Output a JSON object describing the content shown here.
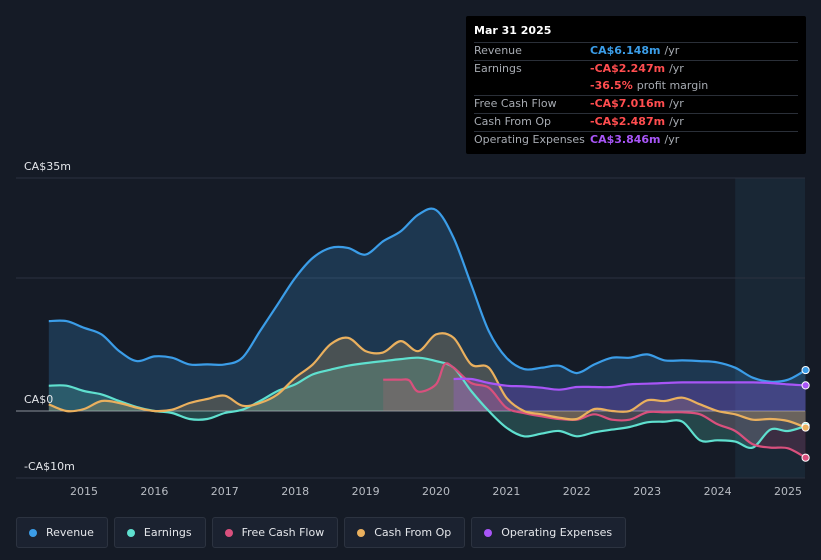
{
  "tooltip": {
    "date": "Mar 31 2025",
    "rows": [
      {
        "label": "Revenue",
        "value": "CA$6.148m",
        "unit": "/yr",
        "color": "#3b9de8"
      },
      {
        "label": "Earnings",
        "value": "-CA$2.247m",
        "unit": "/yr",
        "color": "#ff4d4f"
      },
      {
        "label": "",
        "value": "-36.5%",
        "unit": "profit margin",
        "color": "#ff4d4f"
      },
      {
        "label": "Free Cash Flow",
        "value": "-CA$7.016m",
        "unit": "/yr",
        "color": "#ff4d4f"
      },
      {
        "label": "Cash From Op",
        "value": "-CA$2.487m",
        "unit": "/yr",
        "color": "#ff4d4f"
      },
      {
        "label": "Operating Expenses",
        "value": "CA$3.846m",
        "unit": "/yr",
        "color": "#a855f7"
      }
    ]
  },
  "legend": [
    {
      "label": "Revenue",
      "color": "#3b9de8"
    },
    {
      "label": "Earnings",
      "color": "#5fe0cf"
    },
    {
      "label": "Free Cash Flow",
      "color": "#d9507d"
    },
    {
      "label": "Cash From Op",
      "color": "#eab05e"
    },
    {
      "label": "Operating Expenses",
      "color": "#a855f7"
    }
  ],
  "chart_data": {
    "type": "area",
    "ylabels": {
      "top": "CA$35m",
      "zero": "CA$0",
      "bottom": "-CA$10m"
    },
    "ylim": [
      -10,
      35
    ],
    "xlim": [
      2014.45,
      2025.3
    ],
    "x_ticks": [
      "2015",
      "2016",
      "2017",
      "2018",
      "2019",
      "2020",
      "2021",
      "2022",
      "2023",
      "2024",
      "2025"
    ],
    "forecast_start": 2024.25,
    "series": [
      {
        "name": "Revenue",
        "color": "#3b9de8",
        "x": [
          2014.5,
          2014.75,
          2015.0,
          2015.25,
          2015.5,
          2015.75,
          2016.0,
          2016.25,
          2016.5,
          2016.75,
          2017.0,
          2017.25,
          2017.5,
          2017.75,
          2018.0,
          2018.25,
          2018.5,
          2018.75,
          2019.0,
          2019.25,
          2019.5,
          2019.75,
          2020.0,
          2020.25,
          2020.5,
          2020.75,
          2021.0,
          2021.25,
          2021.5,
          2021.75,
          2022.0,
          2022.25,
          2022.5,
          2022.75,
          2023.0,
          2023.25,
          2023.5,
          2023.75,
          2024.0,
          2024.25,
          2024.5,
          2024.75,
          2025.0,
          2025.25
        ],
        "y": [
          13.5,
          13.5,
          12.5,
          11.5,
          9.0,
          7.5,
          8.2,
          8.0,
          7.0,
          7.0,
          7.0,
          8.0,
          12.0,
          16.0,
          20.0,
          23.0,
          24.5,
          24.5,
          23.5,
          25.5,
          27.0,
          29.5,
          30.2,
          26.0,
          19.0,
          12.0,
          8.0,
          6.3,
          6.5,
          6.8,
          5.7,
          7.0,
          8.0,
          8.0,
          8.5,
          7.6,
          7.6,
          7.5,
          7.3,
          6.5,
          5.0,
          4.4,
          4.7,
          6.148
        ]
      },
      {
        "name": "Earnings",
        "color": "#5fe0cf",
        "x": [
          2014.5,
          2014.75,
          2015.0,
          2015.25,
          2015.5,
          2015.75,
          2016.0,
          2016.25,
          2016.5,
          2016.75,
          2017.0,
          2017.25,
          2017.5,
          2017.75,
          2018.0,
          2018.25,
          2018.5,
          2018.75,
          2019.0,
          2019.25,
          2019.5,
          2019.75,
          2020.0,
          2020.25,
          2020.5,
          2020.75,
          2021.0,
          2021.25,
          2021.5,
          2021.75,
          2022.0,
          2022.25,
          2022.5,
          2022.75,
          2023.0,
          2023.25,
          2023.5,
          2023.75,
          2024.0,
          2024.25,
          2024.5,
          2024.75,
          2025.0,
          2025.25
        ],
        "y": [
          3.8,
          3.8,
          3.0,
          2.5,
          1.5,
          0.6,
          0.0,
          -0.3,
          -1.2,
          -1.2,
          -0.3,
          0.2,
          1.5,
          3.0,
          4.0,
          5.5,
          6.2,
          6.8,
          7.2,
          7.5,
          7.8,
          8.0,
          7.5,
          6.5,
          3.0,
          0.0,
          -2.5,
          -3.8,
          -3.4,
          -3.0,
          -3.8,
          -3.2,
          -2.8,
          -2.4,
          -1.7,
          -1.6,
          -1.6,
          -4.4,
          -4.4,
          -4.6,
          -5.5,
          -2.8,
          -3.0,
          -2.247
        ]
      },
      {
        "name": "Free Cash Flow",
        "color": "#d9507d",
        "x": [
          2019.25,
          2019.5,
          2019.62,
          2019.75,
          2020.0,
          2020.12,
          2020.25,
          2020.5,
          2020.75,
          2021.0,
          2021.25,
          2021.5,
          2021.75,
          2022.0,
          2022.25,
          2022.5,
          2022.75,
          2023.0,
          2023.25,
          2023.5,
          2023.75,
          2024.0,
          2024.25,
          2024.5,
          2024.75,
          2025.0,
          2025.25
        ],
        "y": [
          4.7,
          4.7,
          4.6,
          2.9,
          4.0,
          7.0,
          6.5,
          4.2,
          3.5,
          0.5,
          -0.3,
          -0.8,
          -1.2,
          -1.3,
          -0.5,
          -1.3,
          -1.3,
          -0.2,
          -0.2,
          -0.2,
          -0.5,
          -2.0,
          -3.0,
          -5.0,
          -5.5,
          -5.6,
          -7.016
        ]
      },
      {
        "name": "Cash From Op",
        "color": "#eab05e",
        "x": [
          2014.5,
          2014.75,
          2015.0,
          2015.25,
          2015.5,
          2015.75,
          2016.0,
          2016.25,
          2016.5,
          2016.75,
          2017.0,
          2017.25,
          2017.5,
          2017.75,
          2018.0,
          2018.25,
          2018.5,
          2018.75,
          2019.0,
          2019.25,
          2019.5,
          2019.75,
          2020.0,
          2020.25,
          2020.5,
          2020.75,
          2021.0,
          2021.25,
          2021.5,
          2021.75,
          2022.0,
          2022.25,
          2022.5,
          2022.75,
          2023.0,
          2023.25,
          2023.5,
          2023.75,
          2024.0,
          2024.25,
          2024.5,
          2024.75,
          2025.0,
          2025.25
        ],
        "y": [
          1.0,
          0.0,
          0.3,
          1.5,
          1.2,
          0.5,
          0.0,
          0.2,
          1.2,
          1.8,
          2.3,
          0.8,
          1.2,
          2.5,
          5.0,
          7.0,
          10.0,
          11.0,
          9.0,
          8.8,
          10.5,
          9.0,
          11.5,
          11.0,
          7.0,
          6.5,
          2.0,
          0.0,
          -0.5,
          -1.0,
          -1.2,
          0.3,
          0.0,
          0.0,
          1.6,
          1.5,
          2.0,
          1.0,
          0.0,
          -0.5,
          -1.3,
          -1.2,
          -1.5,
          -2.487
        ]
      },
      {
        "name": "Operating Expenses",
        "color": "#a855f7",
        "x": [
          2020.25,
          2020.5,
          2020.75,
          2021.0,
          2021.25,
          2021.5,
          2021.75,
          2022.0,
          2022.25,
          2022.5,
          2022.75,
          2023.0,
          2023.25,
          2023.5,
          2023.75,
          2024.0,
          2024.25,
          2024.5,
          2024.75,
          2025.0,
          2025.25
        ],
        "y": [
          4.8,
          4.8,
          4.2,
          3.8,
          3.7,
          3.5,
          3.2,
          3.6,
          3.6,
          3.6,
          4.0,
          4.1,
          4.2,
          4.3,
          4.3,
          4.3,
          4.3,
          4.3,
          4.2,
          4.0,
          3.846
        ]
      }
    ]
  }
}
